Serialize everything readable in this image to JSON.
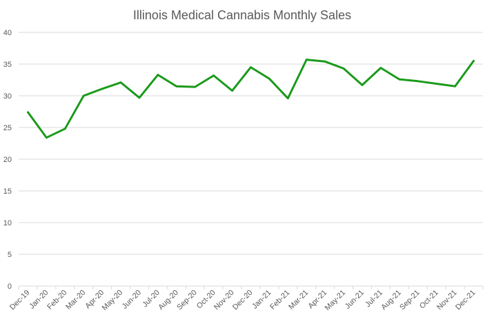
{
  "chart_data": {
    "type": "line",
    "title": "Illinois Medical Cannabis Monthly Sales",
    "xlabel": "",
    "ylabel": "",
    "ylim": [
      0,
      40
    ],
    "yticks": [
      "0",
      "5",
      "10",
      "15",
      "20",
      "25",
      "30",
      "35",
      "40"
    ],
    "grid": true,
    "legend": "none",
    "line_color": "#1A9A1A",
    "categories": [
      "Dec-19",
      "Jan-20",
      "Feb-20",
      "Mar-20",
      "Apr-20",
      "May-20",
      "Jun-20",
      "Jul-20",
      "Aug-20",
      "Sep-20",
      "Oct-20",
      "Nov-20",
      "Dec-20",
      "Jan-21",
      "Feb-21",
      "Mar-21",
      "Apr-21",
      "May-21",
      "Jun-21",
      "Jul-21",
      "Aug-21",
      "Sep-21",
      "Oct-21",
      "Nov-21",
      "Dec-21"
    ],
    "series": [
      {
        "name": "Monthly Sales",
        "values": [
          27.4,
          23.4,
          24.8,
          30.0,
          31.1,
          32.1,
          29.7,
          33.3,
          31.5,
          31.4,
          33.2,
          30.8,
          34.5,
          32.7,
          29.6,
          35.7,
          35.4,
          34.3,
          31.7,
          34.4,
          32.6,
          32.3,
          31.9,
          31.5,
          35.5
        ]
      }
    ]
  }
}
